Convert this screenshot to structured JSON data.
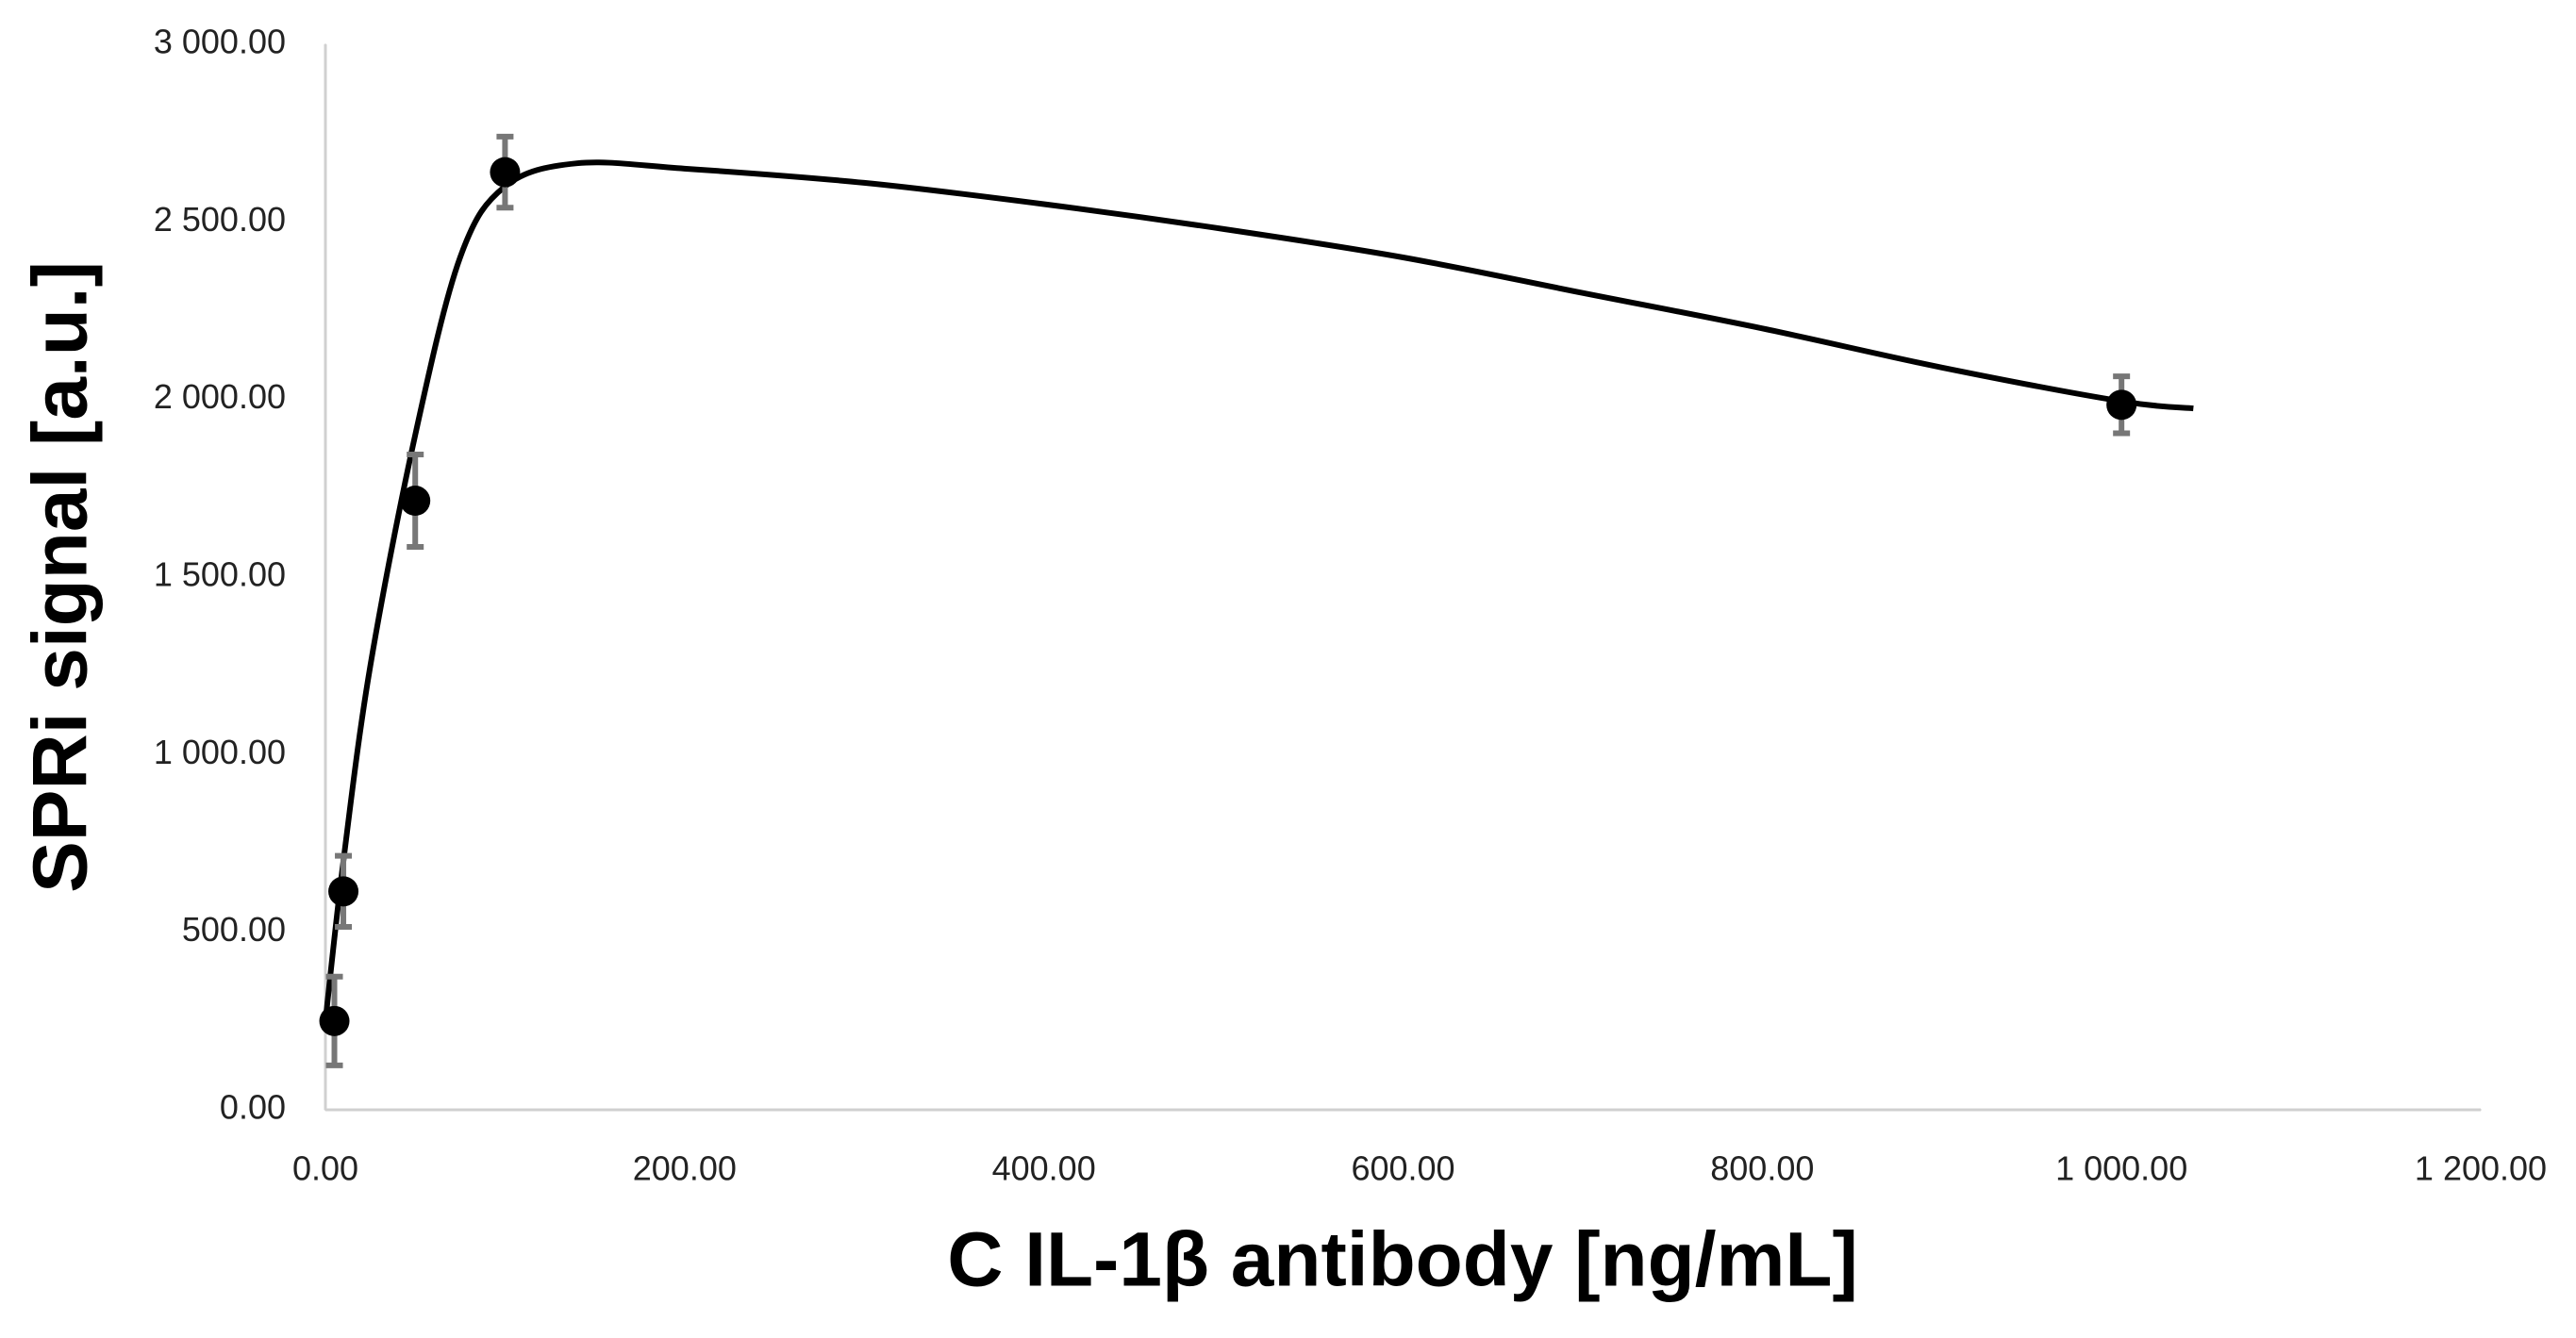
{
  "chart_data": {
    "type": "scatter",
    "x_label": "C IL-1β antibody [ng/mL]",
    "y_label": "SPRi signal [a.u.]",
    "x": [
      5,
      10,
      50,
      100,
      1000
    ],
    "series": [
      {
        "color": "#000000",
        "error_color": "#777777",
        "values": [
          250,
          615,
          1715,
          2640,
          1985
        ],
        "errors": [
          125,
          100,
          130,
          100,
          80
        ]
      }
    ],
    "fit": {
      "color": "#000000",
      "x": [
        0,
        10,
        25,
        50,
        75,
        100,
        140,
        200,
        300,
        400,
        500,
        600,
        700,
        800,
        900,
        1000,
        1040
      ],
      "values": [
        250,
        700,
        1250,
        1900,
        2400,
        2600,
        2665,
        2650,
        2610,
        2550,
        2480,
        2400,
        2300,
        2200,
        2090,
        1995,
        1975
      ]
    },
    "xlim": [
      0,
      1200
    ],
    "xticks": [
      {
        "value": 0,
        "label": "0.00"
      },
      {
        "value": 200,
        "label": "200.00"
      },
      {
        "value": 400,
        "label": "400.00"
      },
      {
        "value": 600,
        "label": "600.00"
      },
      {
        "value": 800,
        "label": "800.00"
      },
      {
        "value": 1000,
        "label": "1 000.00"
      },
      {
        "value": 1200,
        "label": "1 200.00"
      }
    ],
    "ylim": [
      0,
      3000
    ],
    "yticks": [
      {
        "value": 0,
        "label": "0.00"
      },
      {
        "value": 500,
        "label": "500.00"
      },
      {
        "value": 1000,
        "label": "1 000.00"
      },
      {
        "value": 1500,
        "label": "1 500.00"
      },
      {
        "value": 2000,
        "label": "2 000.00"
      },
      {
        "value": 2500,
        "label": "2 500.00"
      },
      {
        "value": 3000,
        "label": "3 000.00"
      }
    ],
    "grid": false
  }
}
